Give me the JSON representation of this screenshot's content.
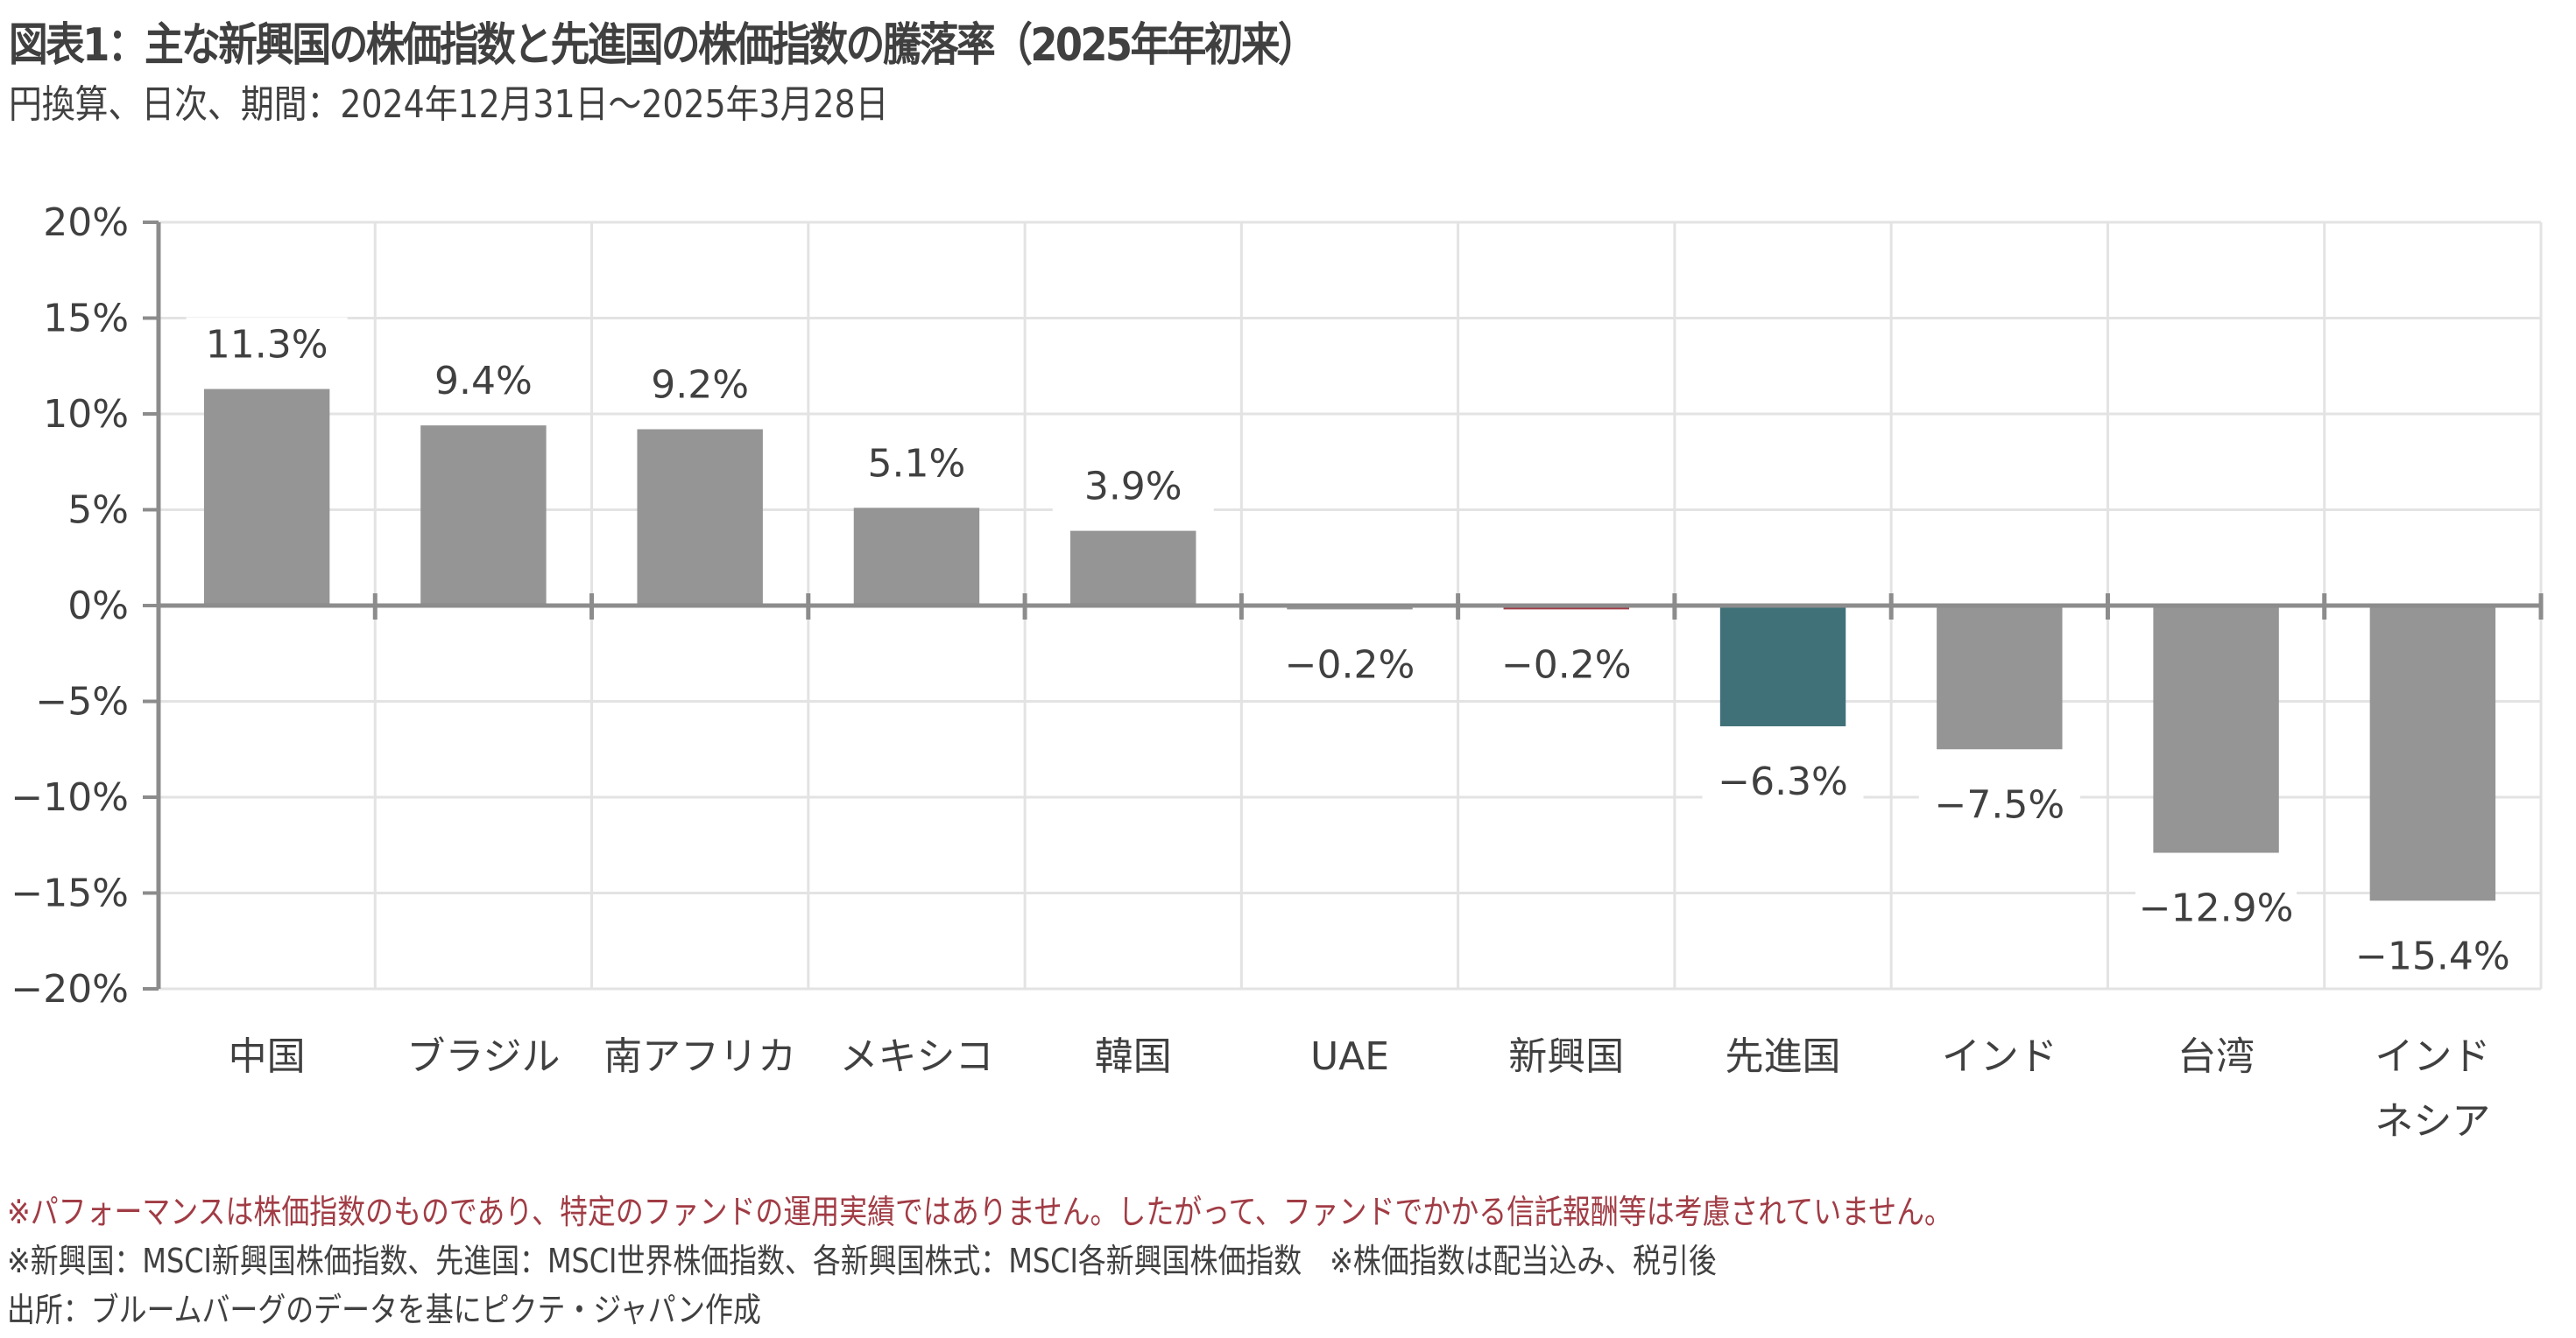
{
  "header": {
    "title": "図表1：主な新興国の株価指数と先進国の株価指数の騰落率（2025年年初来）",
    "subtitle": "円換算、日次、期間：2024年12月31日～2025年3月28日"
  },
  "colors": {
    "default_bar": "#959595",
    "emerging_bar": "#A13C45",
    "developed_bar": "#417178",
    "text": "#404040",
    "grid": "#E3E3E3",
    "axis": "#8C8C8C",
    "note_red": "#A13C45"
  },
  "chart_data": {
    "type": "bar",
    "title": "図表1：主な新興国の株価指数と先進国の株価指数の騰落率（2025年年初来）",
    "subtitle": "円換算、日次、期間：2024年12月31日～2025年3月28日",
    "xlabel": "",
    "ylabel": "",
    "ylim": [
      -20,
      20
    ],
    "y_ticks": [
      20,
      15,
      10,
      5,
      0,
      -5,
      -10,
      -15,
      -20
    ],
    "y_tick_labels": [
      "20%",
      "15%",
      "10%",
      "5%",
      "0%",
      "−5%",
      "−10%",
      "−15%",
      "−20%"
    ],
    "grid": true,
    "legend": "none",
    "categories": [
      [
        "中国"
      ],
      [
        "ブラジル"
      ],
      [
        "南アフリカ"
      ],
      [
        "メキシコ"
      ],
      [
        "韓国"
      ],
      [
        "UAE"
      ],
      [
        "新興国"
      ],
      [
        "先進国"
      ],
      [
        "インド"
      ],
      [
        "台湾"
      ],
      [
        "インド",
        "ネシア"
      ]
    ],
    "values": [
      11.3,
      9.4,
      9.2,
      5.1,
      3.9,
      -0.2,
      -0.2,
      -6.3,
      -7.5,
      -12.9,
      -15.4
    ],
    "data_labels": [
      "11.3%",
      "9.4%",
      "9.2%",
      "5.1%",
      "3.9%",
      "−0.2%",
      "−0.2%",
      "−6.3%",
      "−7.5%",
      "−12.9%",
      "−15.4%"
    ],
    "bar_color_keys": [
      "default_bar",
      "default_bar",
      "default_bar",
      "default_bar",
      "default_bar",
      "default_bar",
      "emerging_bar",
      "developed_bar",
      "default_bar",
      "default_bar",
      "default_bar"
    ]
  },
  "notes": [
    "※パフォーマンスは株価指数のものであり、特定のファンドの運用実績ではありません。したがって、ファンドでかかる信託報酬等は考慮されていません。",
    "※新興国：MSCI新興国株価指数、先進国：MSCI世界株価指数、各新興国株式：MSCI各新興国株価指数　※株価指数は配当込み、税引後",
    "出所：ブルームバーグのデータを基にピクテ・ジャパン作成"
  ]
}
